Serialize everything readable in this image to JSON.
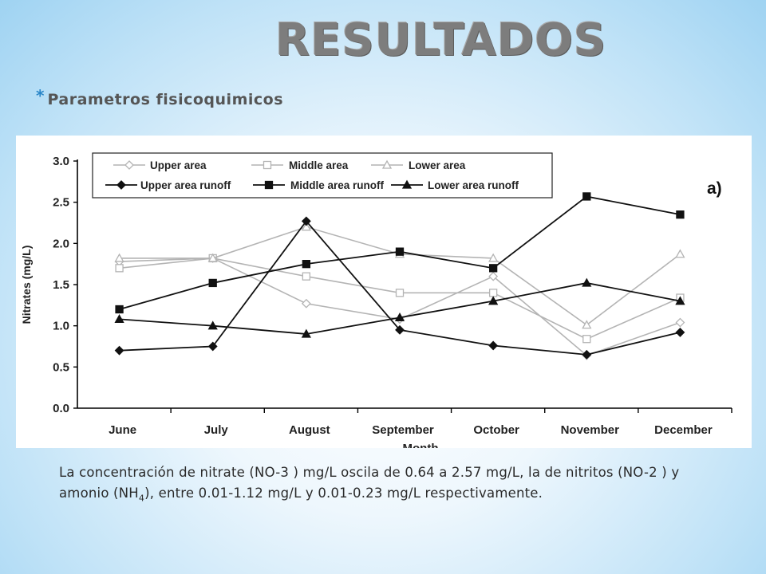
{
  "slide": {
    "title": "RESULTADOS",
    "bullet": "*",
    "subtitle": "Parametros fisicoquimicos",
    "caption_part1": "La concentración de  nitrate (NO-3 ) mg/L oscila de 0.64 a 2.57 mg/L, la de nitritos (NO-2 ) y amonio (NH",
    "caption_sub": "4",
    "caption_part2": "), entre  0.01-1.12 mg/L y 0.01-0.23 mg/L respectivamente."
  },
  "chart_data": {
    "type": "line",
    "panel_label": "a)",
    "ylabel": "Nitrates (mg/L)",
    "xlabel": "Month",
    "ylim": [
      0.0,
      3.0
    ],
    "yticks": [
      "0.0",
      "0.5",
      "1.0",
      "1.5",
      "2.0",
      "2.5",
      "3.0"
    ],
    "categories": [
      "June",
      "July",
      "August",
      "September",
      "October",
      "November",
      "December"
    ],
    "legend_position": "top",
    "series": [
      {
        "name": "Upper area",
        "marker": "diamond",
        "filled": false,
        "color": "#b4b4b4",
        "values": [
          1.78,
          1.82,
          1.27,
          1.08,
          1.6,
          0.64,
          1.04
        ]
      },
      {
        "name": "Middle area",
        "marker": "square",
        "filled": false,
        "color": "#b4b4b4",
        "values": [
          1.7,
          1.82,
          1.6,
          1.4,
          1.4,
          0.84,
          1.34
        ]
      },
      {
        "name": "Lower area",
        "marker": "triangle",
        "filled": false,
        "color": "#b4b4b4",
        "values": [
          1.82,
          1.82,
          2.2,
          1.87,
          1.82,
          1.01,
          1.87
        ]
      },
      {
        "name": "Upper area runoff",
        "marker": "diamond",
        "filled": true,
        "color": "#111111",
        "values": [
          0.7,
          0.75,
          2.27,
          0.95,
          0.76,
          0.65,
          0.92
        ]
      },
      {
        "name": "Middle area runoff",
        "marker": "square",
        "filled": true,
        "color": "#111111",
        "values": [
          1.2,
          1.52,
          1.75,
          1.9,
          1.7,
          2.57,
          2.35
        ]
      },
      {
        "name": "Lower area runoff",
        "marker": "triangle",
        "filled": true,
        "color": "#111111",
        "values": [
          1.08,
          1.0,
          0.9,
          1.1,
          1.3,
          1.52,
          1.3
        ]
      }
    ]
  }
}
